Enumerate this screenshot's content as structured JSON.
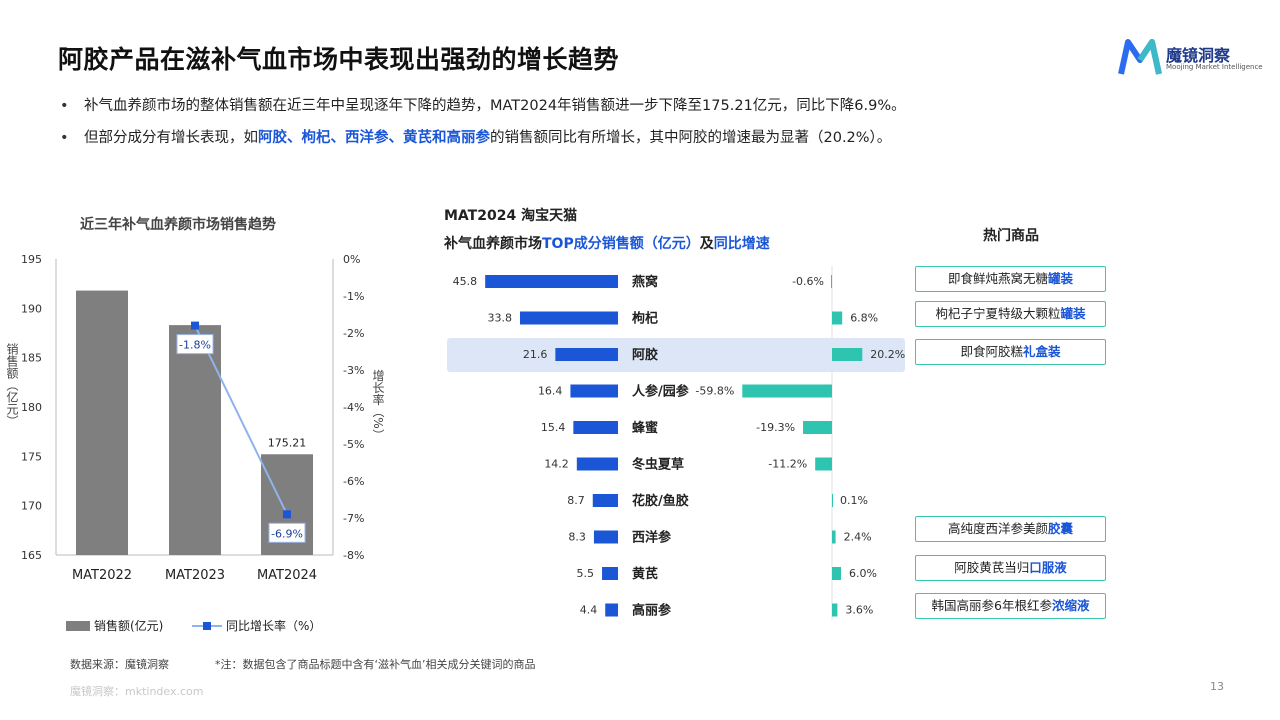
{
  "title": "阿胶产品在滋补气血市场中表现出强劲的增长趋势",
  "logo": {
    "name_cn": "魔镜洞察",
    "name_en": "Moojing Market Intelligence",
    "icon": "moojing-m-logo",
    "colors": [
      "#1f3a8a",
      "#2d6cf0",
      "#3fc8c0"
    ]
  },
  "bullets": [
    {
      "segments": [
        {
          "text": "补气血养颜市场的整体销售额在近三年中呈现逐年下降的趋势，MAT2024年销售额进一步下降至175.21亿元，同比下降6.9%。",
          "hl": false
        }
      ]
    },
    {
      "segments": [
        {
          "text": "但部分成分有增长表现，如",
          "hl": false
        },
        {
          "text": "阿胶、枸杞、西洋参、黄芪和高丽参",
          "hl": true
        },
        {
          "text": "的销售额同比有所增长，其中阿胶的增速最为显著（20.2%）。",
          "hl": false
        }
      ]
    }
  ],
  "left_chart_title": "近三年补气血养颜市场销售趋势",
  "mid_header": {
    "line1": "MAT2024 淘宝天猫",
    "line2_a": "补气血养颜市场",
    "line2_b": "TOP成分销售额（亿元）",
    "line2_c": "及",
    "line2_d": "同比增速"
  },
  "hot_title": "热门商品",
  "products": [
    {
      "row": 0,
      "text_a": "即食鲜炖燕窝无糖",
      "text_b": "罐装"
    },
    {
      "row": 1,
      "text_a": "枸杞子宁夏特级大颗粒",
      "text_b": "罐装"
    },
    {
      "row": 2,
      "text_a": "即食阿胶糕",
      "text_b": "礼盒装"
    },
    {
      "row": 7,
      "text_a": "高纯度西洋参美颜",
      "text_b": "胶囊"
    },
    {
      "row": 8,
      "text_a": "阿胶黄芪当归",
      "text_b": "口服液"
    },
    {
      "row": 9,
      "text_a": "韩国高丽参6年根红参",
      "text_b": "浓缩液"
    }
  ],
  "chart_data": [
    {
      "type": "bar",
      "categories": [
        "MAT2022",
        "MAT2023",
        "MAT2024"
      ],
      "series": [
        {
          "name": "销售额(亿元)",
          "type": "bar",
          "values": [
            191.8,
            188.3,
            175.21
          ],
          "color": "#7f7f7f"
        },
        {
          "name": "同比增长率（%）",
          "type": "line",
          "axis": "right",
          "values": [
            null,
            -1.8,
            -6.9
          ],
          "color": "#8fb3ea",
          "marker_color": "#1a56d6"
        }
      ],
      "data_labels": {
        "bar": [
          null,
          null,
          "175.21"
        ],
        "line": [
          null,
          "-1.8%",
          "-6.9%"
        ]
      },
      "ylabel": "销售额（亿元）",
      "y2label": "增长率（%）",
      "ylim": [
        165,
        195
      ],
      "yticks": [
        "195",
        "190",
        "185",
        "180",
        "175",
        "170",
        "165"
      ],
      "y2lim": [
        -8,
        0
      ],
      "y2ticks": [
        "0%",
        "-1%",
        "-2%",
        "-3%",
        "-4%",
        "-5%",
        "-6%",
        "-7%",
        "-8%"
      ],
      "grid": false,
      "legend": "bottom"
    },
    {
      "type": "bar",
      "orientation": "horizontal",
      "categories": [
        "燕窝",
        "枸杞",
        "阿胶",
        "人参/园参",
        "蜂蜜",
        "冬虫夏草",
        "花胶/鱼胶",
        "西洋参",
        "黄芪",
        "高丽参"
      ],
      "series": [
        {
          "name": "销售额",
          "values": [
            45.8,
            33.8,
            21.6,
            16.4,
            15.4,
            14.2,
            8.7,
            8.3,
            5.5,
            4.4
          ],
          "labels": [
            "45.8",
            "33.8",
            "21.6",
            "16.4",
            "15.4",
            "14.2",
            "8.7",
            "8.3",
            "5.5",
            "4.4"
          ],
          "color": "#1a56d6"
        },
        {
          "name": "同比增速",
          "values": [
            -0.6,
            6.8,
            20.2,
            -59.8,
            -19.3,
            -11.2,
            0.1,
            2.4,
            6.0,
            3.6
          ],
          "labels": [
            "-0.6%",
            "6.8%",
            "20.2%",
            "-59.8%",
            "-19.3%",
            "-11.2%",
            "0.1%",
            "2.4%",
            "6.0%",
            "3.6%"
          ],
          "color": "#2ec4b0"
        }
      ],
      "highlight_category": "阿胶",
      "highlight_color": "#dde6f7"
    }
  ],
  "footer": {
    "source": "数据来源：魔镜洞察",
    "note": "*注：数据包含了商品标题中含有‘滋补气血’相关成分关键词的商品",
    "url": "魔镜洞察：mktindex.com",
    "page": "13"
  }
}
